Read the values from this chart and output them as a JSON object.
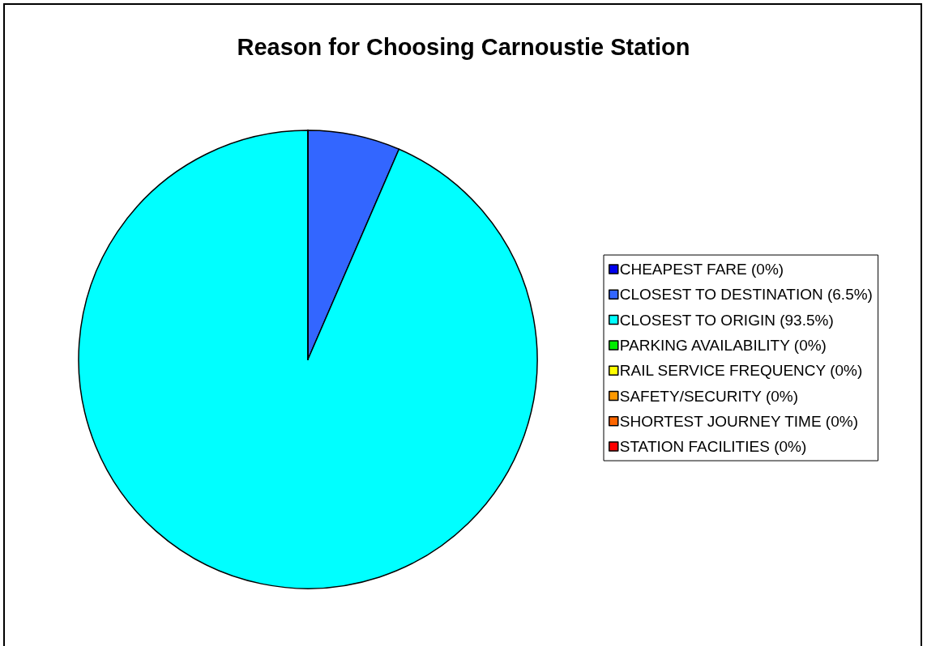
{
  "chart_data": {
    "type": "pie",
    "title": "Reason for Choosing Carnoustie Station",
    "categories": [
      "CHEAPEST FARE (0%)",
      "CLOSEST TO DESTINATION (6.5%)",
      "CLOSEST TO ORIGIN (93.5%)",
      "PARKING AVAILABILITY (0%)",
      "RAIL SERVICE FREQUENCY (0%)",
      "SAFETY/SECURITY (0%)",
      "SHORTEST JOURNEY TIME (0%)",
      "STATION FACILITIES (0%)"
    ],
    "values": [
      0,
      6.5,
      93.5,
      0,
      0,
      0,
      0,
      0
    ],
    "colors": [
      "#0000ee",
      "#3366ff",
      "#00ffff",
      "#00ee00",
      "#ffff00",
      "#ff9900",
      "#ff6600",
      "#ff0000"
    ],
    "legend": "right"
  }
}
